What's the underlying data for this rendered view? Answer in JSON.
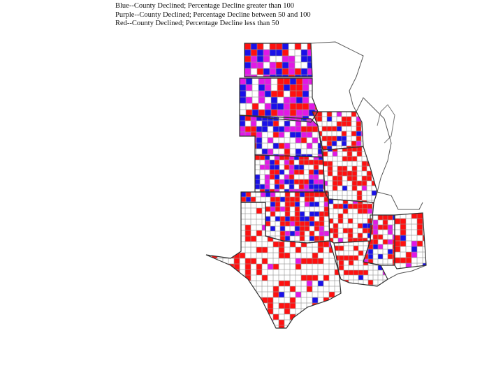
{
  "legend": {
    "blue": "Blue--County Declined; Percentage Decline greater than 100",
    "purple": "Purple--County Declined; Percentage Decline between 50 and 100",
    "red": "Red--County Declined; Percentage Decline less than 50"
  },
  "colors": {
    "blue": "#1a10e8",
    "purple": "#e218e6",
    "red": "#ff1010",
    "outline": "#333333",
    "county_lines": "#9a9a9a"
  },
  "map": {
    "region": "Central United States (Great Plains and Lower Mississippi states)",
    "fill_pattern_hint": "north: mostly blue/purple; south: mostly red"
  }
}
